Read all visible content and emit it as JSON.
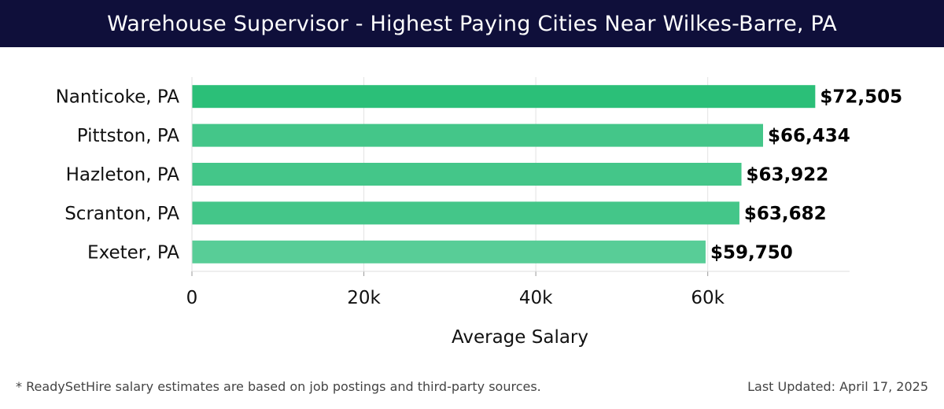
{
  "header": {
    "title": "Warehouse Supervisor - Highest Paying Cities Near Wilkes-Barre, PA"
  },
  "chart_data": {
    "type": "bar",
    "orientation": "horizontal",
    "categories": [
      "Nanticoke, PA",
      "Pittston, PA",
      "Hazleton, PA",
      "Scranton, PA",
      "Exeter, PA"
    ],
    "values": [
      72505,
      66434,
      63922,
      63682,
      59750
    ],
    "value_labels": [
      "$72,505",
      "$66,434",
      "$63,922",
      "$63,682",
      "$59,750"
    ],
    "bar_colors": [
      "#2bbf78",
      "#44c689",
      "#44c689",
      "#44c689",
      "#58cd97"
    ],
    "xlabel": "Average Salary",
    "ylabel": "",
    "xlim": [
      0,
      76500
    ],
    "xticks": [
      0,
      20000,
      40000,
      60000
    ],
    "xtick_labels": [
      "0",
      "20k",
      "40k",
      "60k"
    ],
    "grid": true
  },
  "footer": {
    "note": "* ReadySetHire salary estimates are based on job postings and third-party sources.",
    "updated": "Last Updated: April 17, 2025"
  }
}
